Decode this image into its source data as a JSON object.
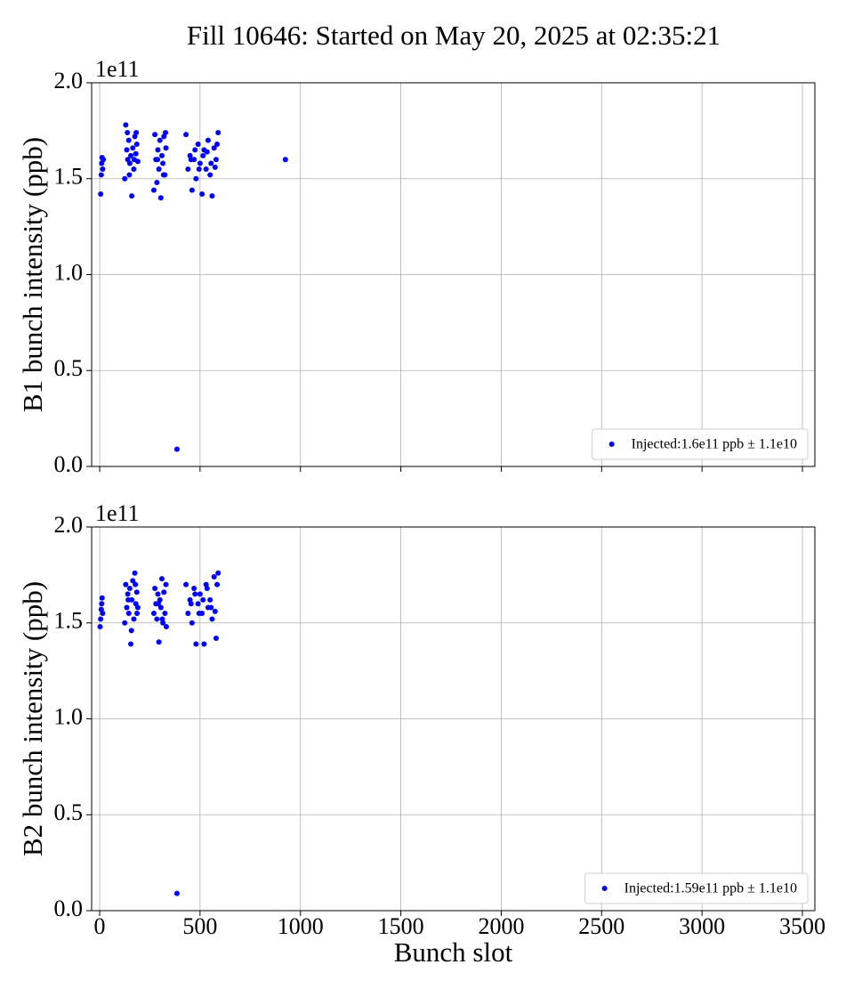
{
  "title": "Fill 10646: Started on May 20, 2025 at 02:35:21",
  "chart_data": [
    {
      "type": "scatter",
      "ylabel": "B1 bunch intensity (ppb)",
      "y_offset_label": "1e11",
      "xlim": [
        -40,
        3562
      ],
      "ylim": [
        0,
        2
      ],
      "xticks": [
        0,
        500,
        1000,
        1500,
        2000,
        2500,
        3000,
        3500
      ],
      "yticks": [
        {
          "value": 0,
          "label": "0.0"
        },
        {
          "value": 0.5,
          "label": "0.5"
        },
        {
          "value": 1,
          "label": "1.0"
        },
        {
          "value": 1.5,
          "label": "1.5"
        },
        {
          "value": 2,
          "label": "2.0"
        }
      ],
      "grid": true,
      "legend": "lower right",
      "series": [
        {
          "name": "Injected:1.6e11 ppb ± 1.1e10",
          "color": "#0000ff",
          "x": [
            5,
            8,
            10,
            12,
            15,
            18,
            125,
            130,
            135,
            140,
            145,
            150,
            155,
            160,
            165,
            170,
            175,
            180,
            185,
            190,
            138,
            148,
            172,
            182,
            270,
            275,
            280,
            285,
            290,
            295,
            300,
            305,
            310,
            315,
            320,
            325,
            330,
            288,
            318,
            328,
            430,
            440,
            450,
            460,
            470,
            480,
            490,
            500,
            510,
            520,
            530,
            540,
            550,
            560,
            570,
            580,
            590,
            455,
            475,
            495,
            515,
            535,
            555,
            575,
            585,
            385,
            925
          ],
          "values": [
            1.42,
            1.52,
            1.58,
            1.61,
            1.55,
            1.6,
            1.5,
            1.78,
            1.65,
            1.6,
            1.7,
            1.58,
            1.62,
            1.41,
            1.66,
            1.55,
            1.72,
            1.63,
            1.68,
            1.59,
            1.74,
            1.52,
            1.6,
            1.74,
            1.44,
            1.73,
            1.6,
            1.48,
            1.65,
            1.55,
            1.7,
            1.4,
            1.62,
            1.58,
            1.72,
            1.52,
            1.66,
            1.6,
            1.52,
            1.74,
            1.73,
            1.55,
            1.62,
            1.44,
            1.6,
            1.5,
            1.68,
            1.58,
            1.42,
            1.65,
            1.55,
            1.7,
            1.52,
            1.41,
            1.66,
            1.6,
            1.74,
            1.6,
            1.65,
            1.55,
            1.62,
            1.64,
            1.58,
            1.56,
            1.68,
            0.09,
            1.6
          ]
        }
      ]
    },
    {
      "type": "scatter",
      "xlabel": "Bunch slot",
      "ylabel": "B2 bunch intensity (ppb)",
      "y_offset_label": "1e11",
      "xlim": [
        -40,
        3562
      ],
      "ylim": [
        0,
        2
      ],
      "xticks": [
        0,
        500,
        1000,
        1500,
        2000,
        2500,
        3000,
        3500
      ],
      "yticks": [
        {
          "value": 0,
          "label": "0.0"
        },
        {
          "value": 0.5,
          "label": "0.5"
        },
        {
          "value": 1,
          "label": "1.0"
        },
        {
          "value": 1.5,
          "label": "1.5"
        },
        {
          "value": 2,
          "label": "2.0"
        }
      ],
      "grid": true,
      "legend": "lower right",
      "series": [
        {
          "name": "Injected:1.59e11 ppb ± 1.1e10",
          "color": "#0000ff",
          "x": [
            2,
            5,
            8,
            10,
            12,
            15,
            125,
            130,
            135,
            140,
            145,
            150,
            155,
            160,
            165,
            170,
            175,
            180,
            185,
            190,
            142,
            158,
            178,
            186,
            270,
            275,
            280,
            285,
            290,
            295,
            300,
            305,
            310,
            315,
            320,
            325,
            330,
            292,
            312,
            332,
            430,
            440,
            450,
            460,
            470,
            480,
            490,
            500,
            510,
            520,
            530,
            540,
            550,
            560,
            570,
            580,
            590,
            455,
            475,
            495,
            515,
            535,
            555,
            575,
            585,
            385
          ],
          "values": [
            1.48,
            1.52,
            1.57,
            1.6,
            1.63,
            1.55,
            1.5,
            1.7,
            1.58,
            1.65,
            1.55,
            1.68,
            1.39,
            1.62,
            1.72,
            1.52,
            1.76,
            1.6,
            1.66,
            1.58,
            1.62,
            1.46,
            1.7,
            1.55,
            1.55,
            1.68,
            1.6,
            1.52,
            1.65,
            1.4,
            1.62,
            1.58,
            1.73,
            1.5,
            1.66,
            1.55,
            1.7,
            1.6,
            1.52,
            1.48,
            1.7,
            1.55,
            1.62,
            1.5,
            1.68,
            1.39,
            1.6,
            1.65,
            1.55,
            1.39,
            1.7,
            1.58,
            1.62,
            1.52,
            1.74,
            1.42,
            1.76,
            1.6,
            1.65,
            1.55,
            1.62,
            1.68,
            1.58,
            1.56,
            1.7,
            0.09
          ]
        }
      ]
    }
  ]
}
